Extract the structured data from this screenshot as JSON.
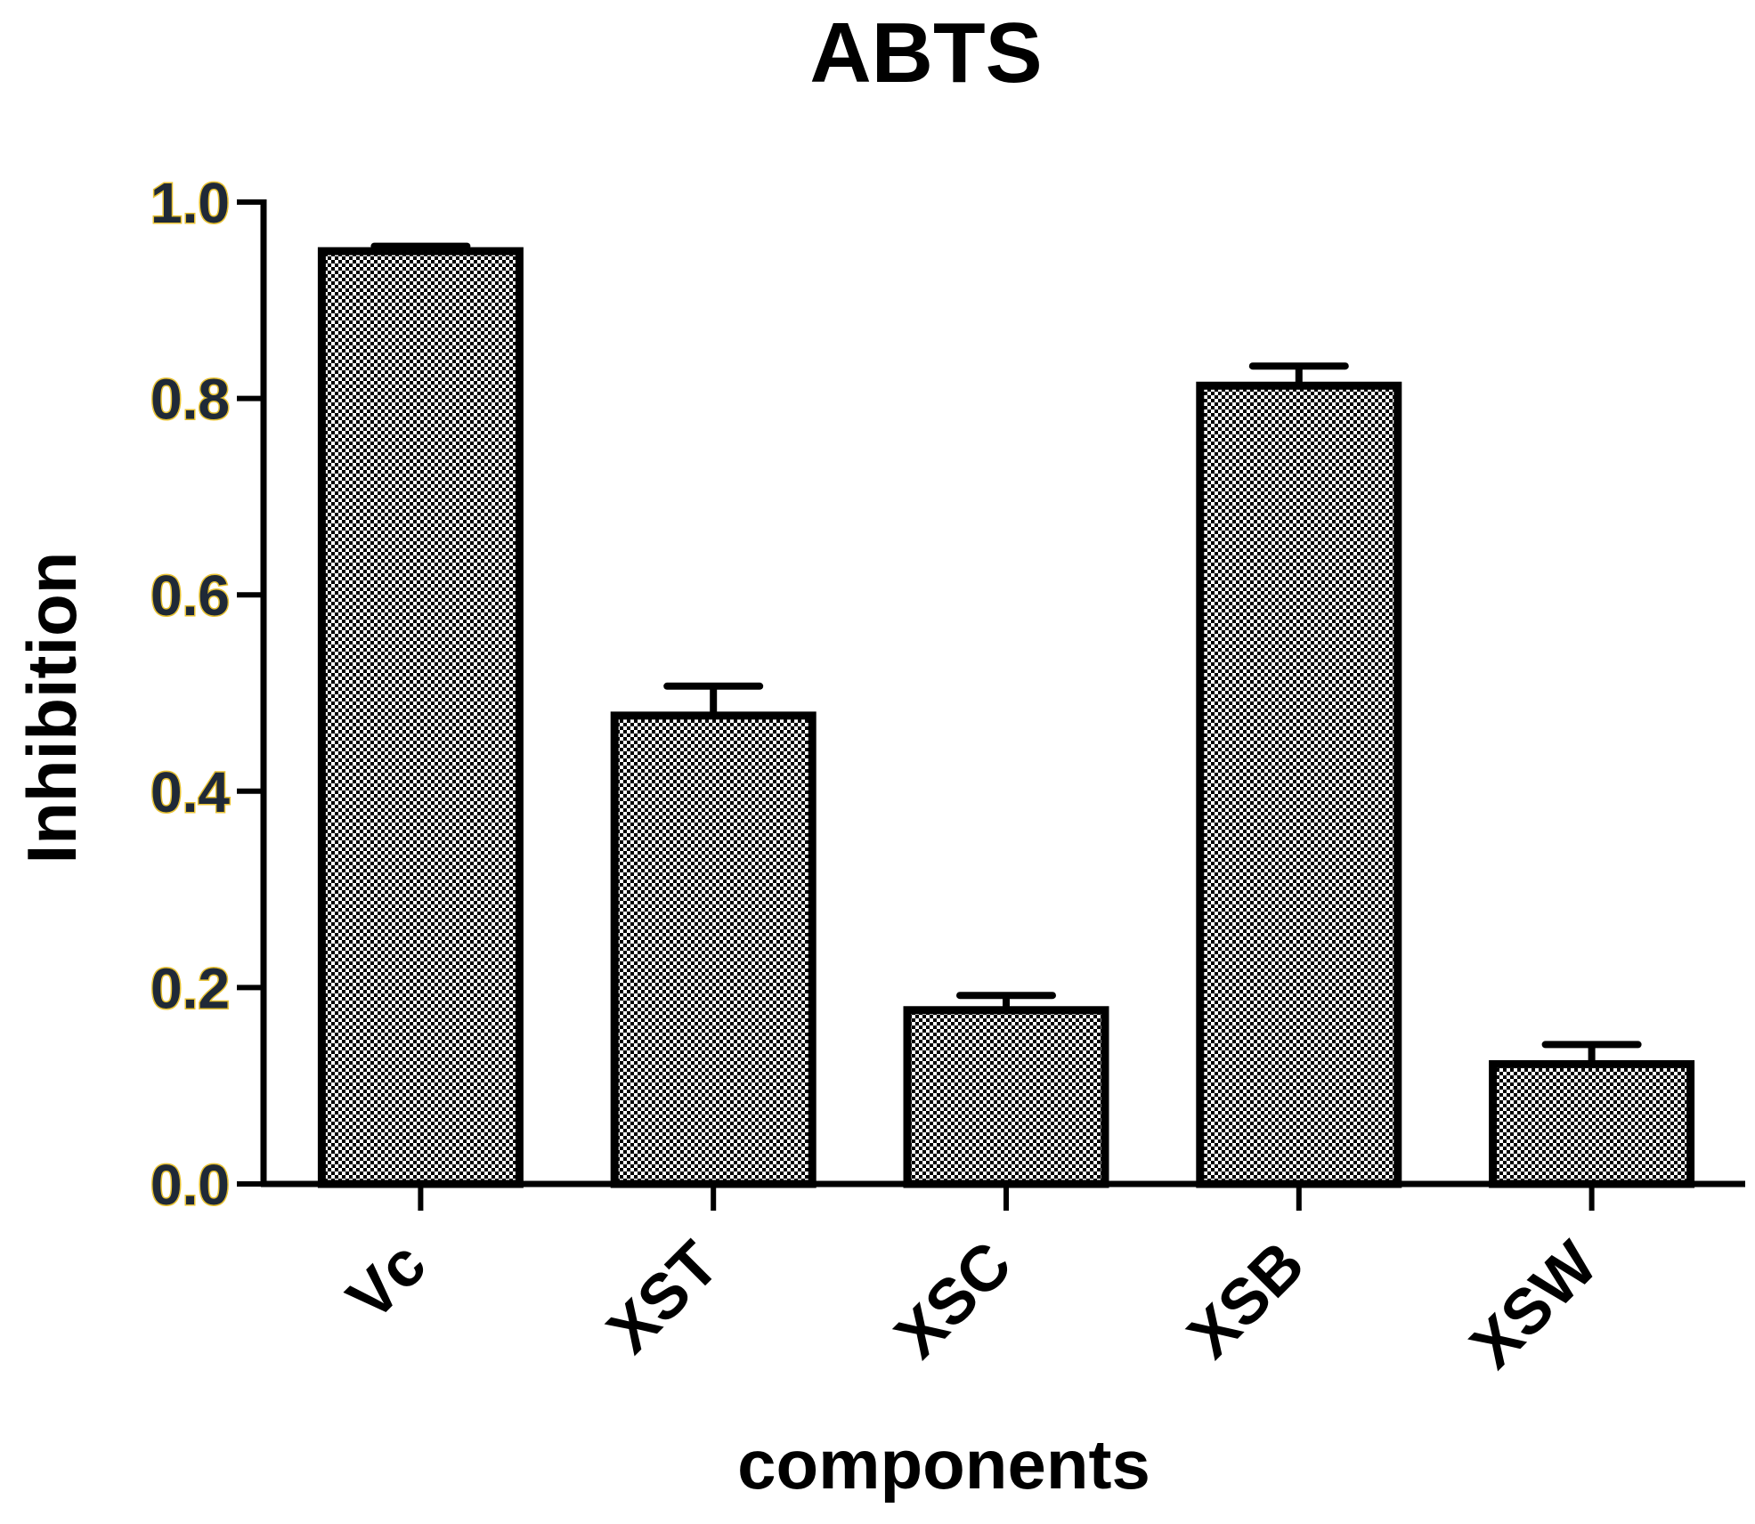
{
  "chart_data": {
    "type": "bar",
    "title": "ABTS",
    "xlabel": "components",
    "ylabel": "Inhibition",
    "categories": [
      "Vc",
      "XST",
      "XSC",
      "XSB",
      "XSW"
    ],
    "values": [
      0.95,
      0.477,
      0.177,
      0.813,
      0.122
    ],
    "error": [
      0.005,
      0.03,
      0.015,
      0.02,
      0.02
    ],
    "ylim": [
      0,
      1.0
    ],
    "yticks": [
      "0.0",
      "0.2",
      "0.4",
      "0.6",
      "0.8",
      "1.0"
    ],
    "grid": false,
    "legend": "none",
    "colors": {
      "bar_fill_pattern": "checkerboard",
      "bar_edge": "#000000",
      "ytick_text": "#1f2937",
      "ytick_outline": "#e8c233"
    }
  }
}
